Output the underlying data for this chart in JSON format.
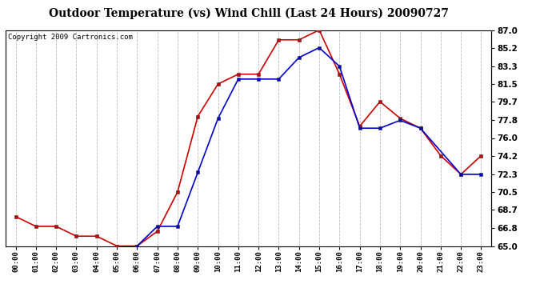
{
  "title": "Outdoor Temperature (vs) Wind Chill (Last 24 Hours) 20090727",
  "copyright": "Copyright 2009 Cartronics.com",
  "hours": [
    "00:00",
    "01:00",
    "02:00",
    "03:00",
    "04:00",
    "05:00",
    "06:00",
    "07:00",
    "08:00",
    "09:00",
    "10:00",
    "11:00",
    "12:00",
    "13:00",
    "14:00",
    "15:00",
    "16:00",
    "17:00",
    "18:00",
    "19:00",
    "20:00",
    "21:00",
    "22:00",
    "23:00"
  ],
  "temp": [
    68.0,
    67.0,
    67.0,
    66.0,
    66.0,
    65.0,
    65.0,
    66.5,
    70.5,
    78.2,
    81.5,
    82.5,
    82.5,
    86.0,
    86.0,
    87.0,
    82.5,
    77.2,
    79.7,
    78.0,
    77.0,
    74.2,
    72.3,
    74.2
  ],
  "wind_chill": [
    null,
    null,
    null,
    null,
    null,
    null,
    65.0,
    67.0,
    67.0,
    72.5,
    78.0,
    82.0,
    82.0,
    82.0,
    84.2,
    85.2,
    83.3,
    77.0,
    77.0,
    77.8,
    77.0,
    null,
    72.3,
    72.3
  ],
  "ylim": [
    65.0,
    87.0
  ],
  "yticks": [
    65.0,
    66.8,
    68.7,
    70.5,
    72.3,
    74.2,
    76.0,
    77.8,
    79.7,
    81.5,
    83.3,
    85.2,
    87.0
  ],
  "temp_color": "#cc0000",
  "wind_chill_color": "#0000cc",
  "bg_color": "#ffffff",
  "grid_color": "#bbbbbb",
  "marker": "s",
  "marker_size": 3,
  "line_width": 1.2,
  "title_fontsize": 10,
  "copyright_fontsize": 6.5
}
